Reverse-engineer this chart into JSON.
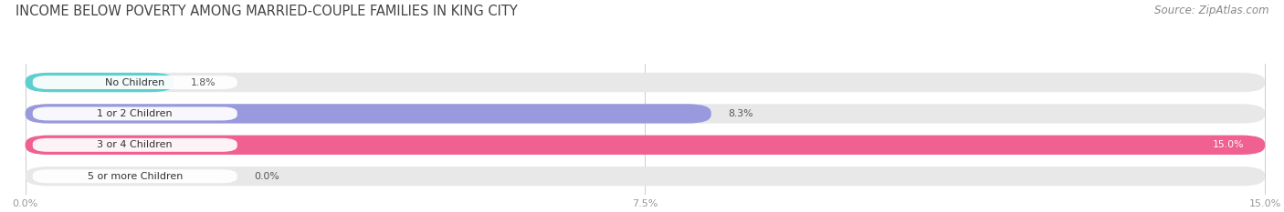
{
  "title": "INCOME BELOW POVERTY AMONG MARRIED-COUPLE FAMILIES IN KING CITY",
  "source": "Source: ZipAtlas.com",
  "categories": [
    "No Children",
    "1 or 2 Children",
    "3 or 4 Children",
    "5 or more Children"
  ],
  "values": [
    1.8,
    8.3,
    15.0,
    0.0
  ],
  "max_value": 15.0,
  "bar_colors": [
    "#5ecfcf",
    "#9999dd",
    "#f06090",
    "#f5c89a"
  ],
  "bar_bg_color": "#e8e8e8",
  "value_label_colors": [
    "#555555",
    "#555555",
    "#ffffff",
    "#555555"
  ],
  "xticks": [
    0.0,
    7.5,
    15.0
  ],
  "xtick_labels": [
    "0.0%",
    "7.5%",
    "15.0%"
  ],
  "fig_bg_color": "#ffffff",
  "title_color": "#444444",
  "source_color": "#888888",
  "title_fontsize": 10.5,
  "source_fontsize": 8.5,
  "label_fontsize": 8,
  "value_fontsize": 7.8,
  "tick_fontsize": 8
}
